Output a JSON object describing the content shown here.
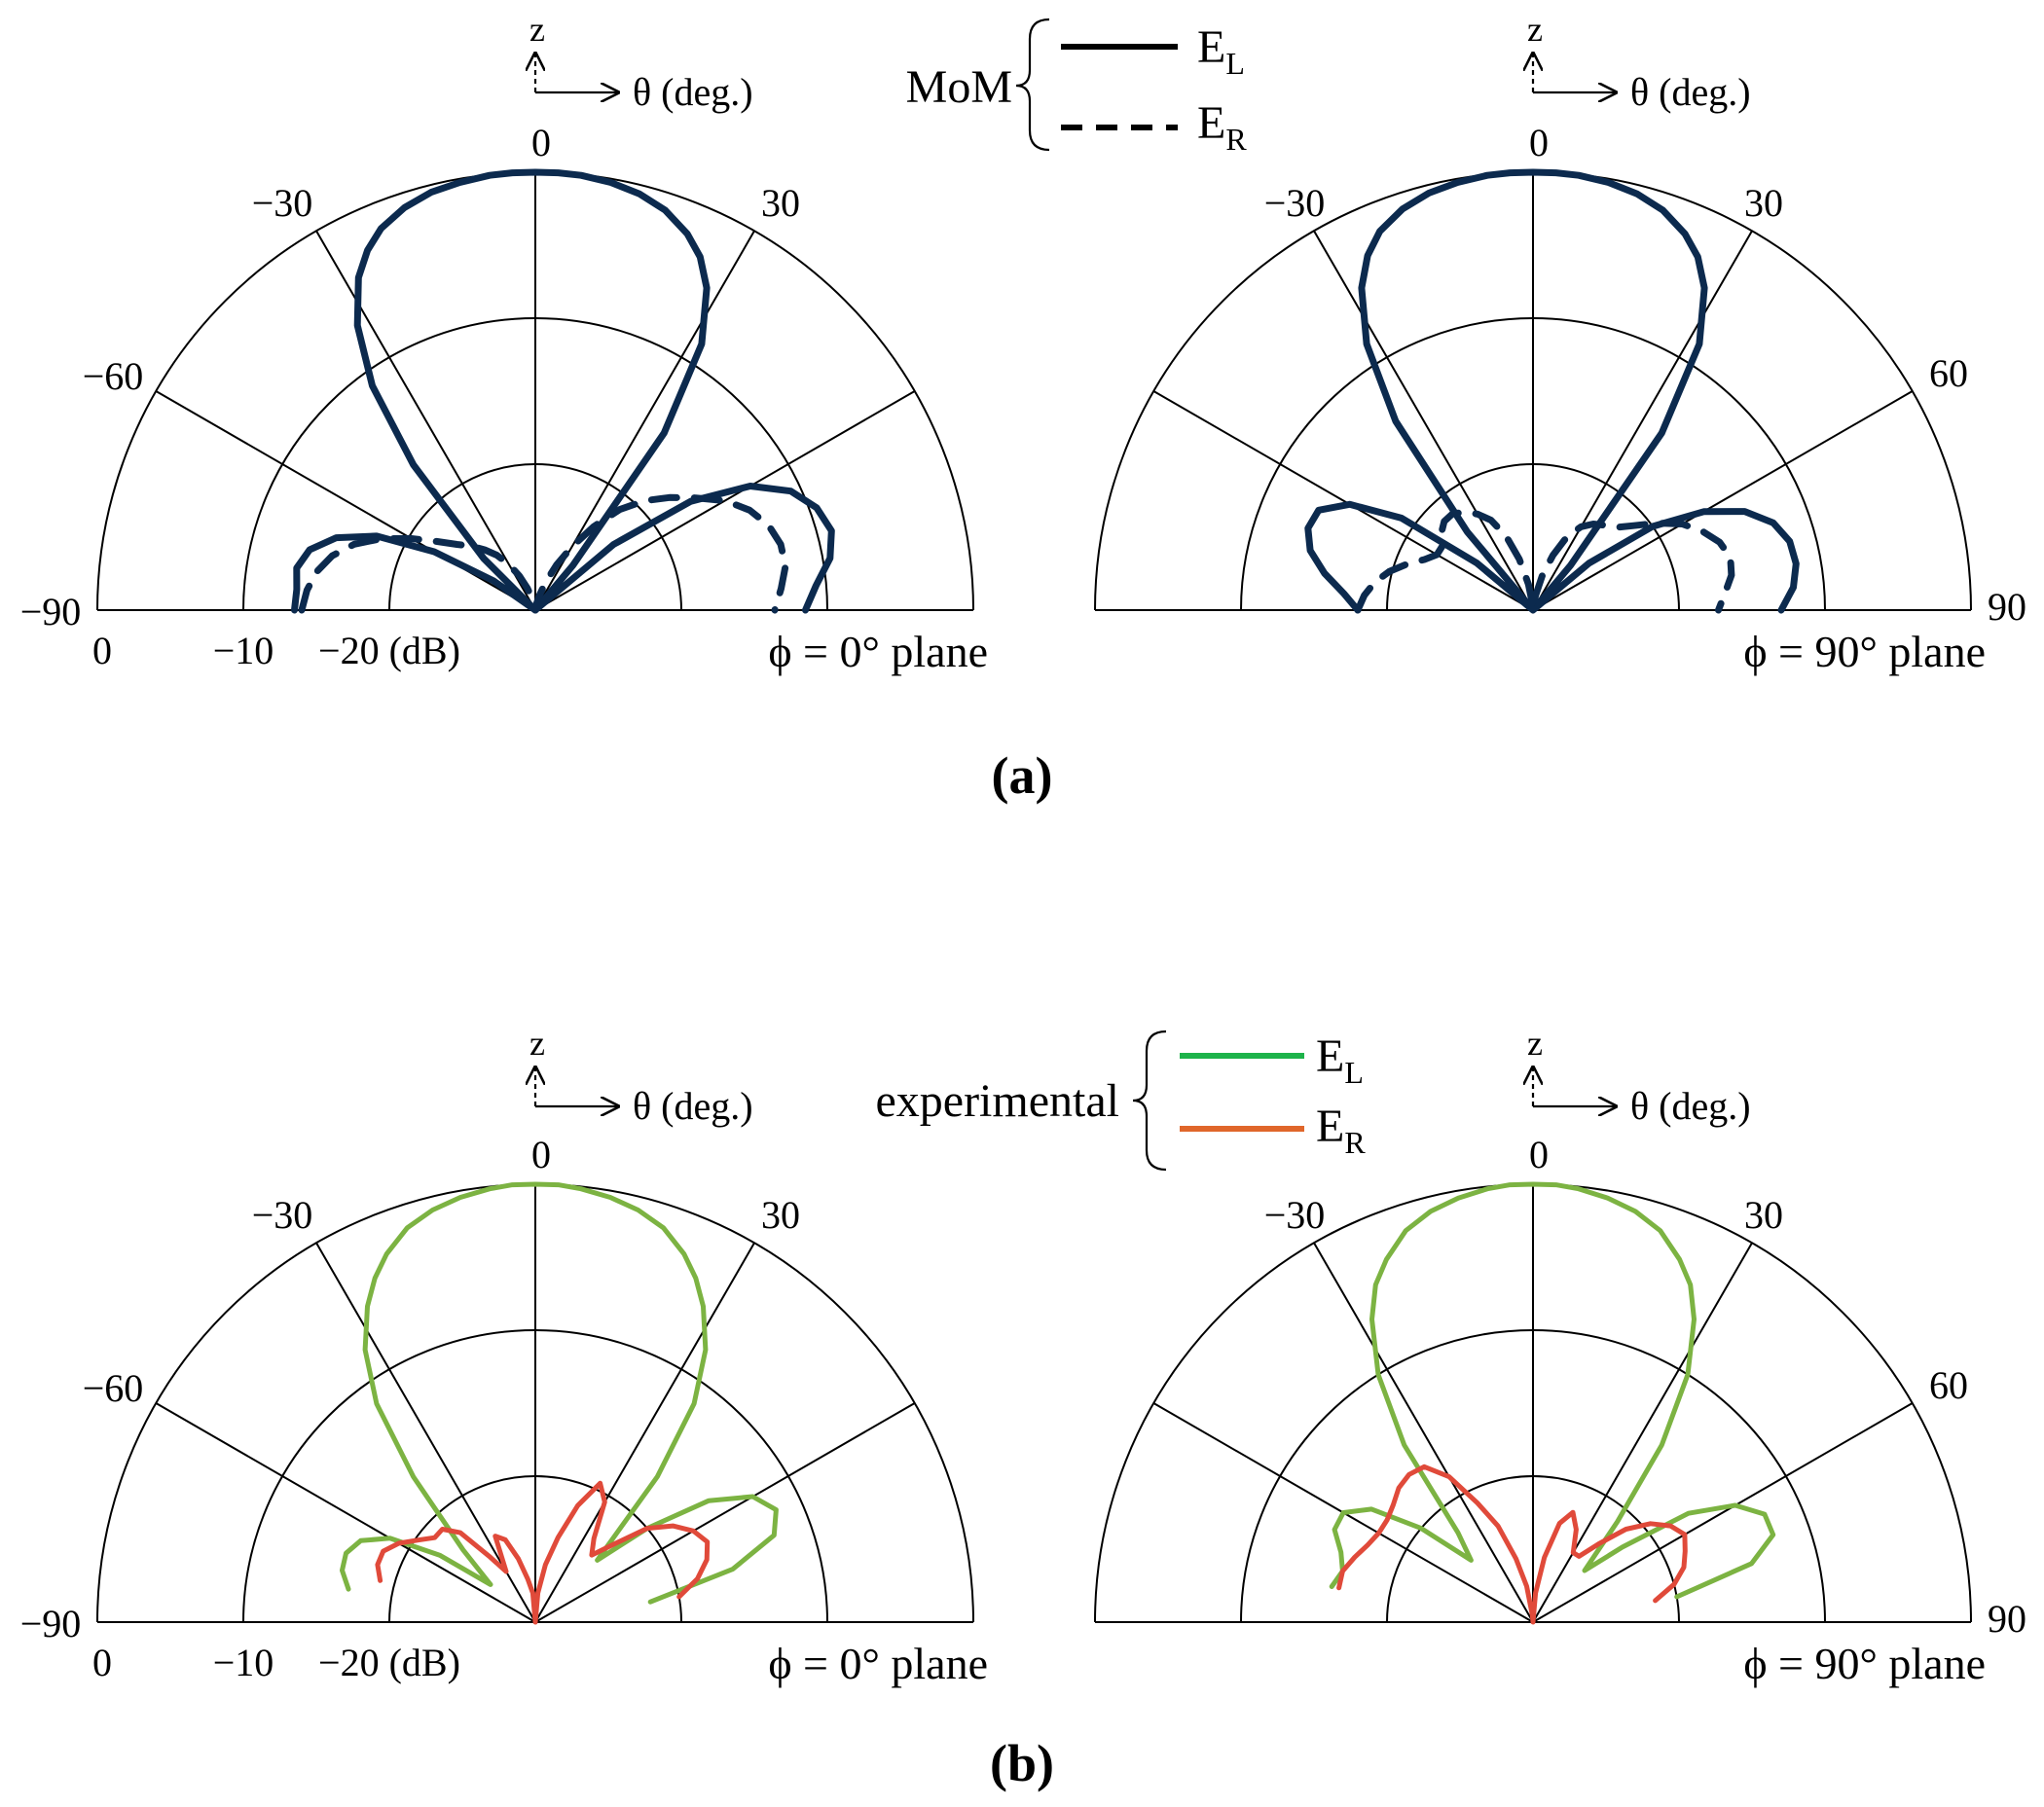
{
  "panels": [
    {
      "tag_open": "(",
      "tag_letter": "a",
      "tag_close": ")",
      "legend": {
        "group_label": "MoM",
        "entries": [
          {
            "symbol": "E",
            "sub": "L",
            "color": "#000000",
            "dash": false
          },
          {
            "symbol": "E",
            "sub": "R",
            "color": "#000000",
            "dash": true
          }
        ]
      }
    },
    {
      "tag_open": "(",
      "tag_letter": "b",
      "tag_close": ")",
      "legend": {
        "group_label": "experimental",
        "entries": [
          {
            "symbol": "E",
            "sub": "L",
            "color": "#1db34a",
            "dash": false
          },
          {
            "symbol": "E",
            "sub": "R",
            "color": "#e0662a",
            "dash": false
          }
        ]
      }
    }
  ],
  "axis_labels": {
    "z": "z",
    "theta": "θ (deg.)",
    "zero": "0",
    "db_unit": "(dB)",
    "radial_ticks": [
      "0",
      "−10",
      "−20"
    ]
  },
  "chart_data": [
    {
      "type": "polar",
      "panel": "a",
      "plane": "ϕ = 0° plane",
      "radial_range_db": [
        -30,
        0
      ],
      "radial_ticks_db": [
        0,
        -10,
        -20
      ],
      "theta_range": [
        -90,
        90
      ],
      "theta_ticks": [
        -90,
        -60,
        -30,
        0,
        30
      ],
      "theta_tick_labels": [
        "−90",
        "−60",
        "−30",
        "0",
        "30"
      ],
      "series": [
        {
          "name": "E_L",
          "color": "#0c2a4e",
          "dash": false,
          "theta": [
            -90,
            -85,
            -80,
            -75,
            -70,
            -65,
            -60,
            -55,
            -50,
            -45,
            -40,
            -36,
            -32,
            -28,
            -25,
            -22,
            -18,
            -14,
            -10,
            -6,
            -3,
            0,
            3,
            6,
            10,
            14,
            18,
            22,
            25,
            28,
            32,
            36,
            40,
            45,
            50,
            55,
            60,
            65,
            70,
            75,
            80,
            85,
            90
          ],
          "r_db": [
            -13.5,
            -13.6,
            -13.4,
            -14.0,
            -15.5,
            -18.0,
            -22.0,
            -26.5,
            -30.0,
            -25.0,
            -17.0,
            -11.0,
            -7.0,
            -4.2,
            -2.8,
            -1.8,
            -1.0,
            -0.5,
            -0.25,
            -0.05,
            0,
            0,
            0,
            -0.05,
            -0.25,
            -0.6,
            -1.2,
            -2.2,
            -3.3,
            -5.0,
            -8.5,
            -15.0,
            -26.0,
            -30.0,
            -23.0,
            -17.0,
            -13.0,
            -10.7,
            -9.5,
            -9.0,
            -9.5,
            -10.7,
            -11.5
          ]
        },
        {
          "name": "E_R",
          "color": "#0c2a4e",
          "dash": true,
          "theta": [
            -90,
            -85,
            -80,
            -75,
            -70,
            -65,
            -60,
            -55,
            -50,
            -45,
            -40,
            -35,
            -30,
            -25,
            -20,
            -15,
            -10,
            -5,
            0,
            5,
            10,
            15,
            20,
            25,
            30,
            35,
            40,
            45,
            50,
            55,
            60,
            65,
            70,
            75,
            80,
            85,
            90
          ],
          "r_db": [
            -14.0,
            -14.3,
            -14.8,
            -15.6,
            -16.8,
            -18.4,
            -20.2,
            -21.8,
            -23.0,
            -23.8,
            -24.6,
            -25.4,
            -26.4,
            -27.4,
            -28.4,
            -29.2,
            -29.7,
            -30.0,
            -30.0,
            -30.0,
            -29.6,
            -29.0,
            -28.0,
            -26.6,
            -25.0,
            -23.0,
            -21.0,
            -19.4,
            -18.0,
            -16.6,
            -15.0,
            -13.8,
            -13.0,
            -12.6,
            -12.6,
            -13.1,
            -13.6
          ]
        }
      ]
    },
    {
      "type": "polar",
      "panel": "a",
      "plane": "ϕ = 90° plane",
      "radial_range_db": [
        -30,
        0
      ],
      "theta_range": [
        -90,
        90
      ],
      "theta_ticks": [
        -30,
        0,
        30,
        60,
        90
      ],
      "theta_tick_labels": [
        "−30",
        "0",
        "30",
        "60",
        "90"
      ],
      "series": [
        {
          "name": "E_L",
          "color": "#0c2a4e",
          "dash": false,
          "theta": [
            -90,
            -85,
            -80,
            -75,
            -70,
            -65,
            -60,
            -55,
            -50,
            -45,
            -40,
            -36,
            -32,
            -28,
            -25,
            -22,
            -18,
            -14,
            -10,
            -6,
            -3,
            0,
            3,
            6,
            10,
            14,
            18,
            22,
            25,
            28,
            32,
            36,
            40,
            45,
            50,
            55,
            60,
            65,
            70,
            75,
            80,
            85,
            90
          ],
          "r_db": [
            -18.0,
            -17.0,
            -15.5,
            -14.2,
            -13.6,
            -13.8,
            -15.5,
            -19.0,
            -25.0,
            -30.0,
            -23.0,
            -14.0,
            -8.5,
            -5.0,
            -3.2,
            -2.0,
            -1.1,
            -0.55,
            -0.25,
            -0.05,
            0,
            0,
            0,
            -0.05,
            -0.25,
            -0.6,
            -1.2,
            -2.2,
            -3.3,
            -5.0,
            -8.5,
            -15.0,
            -26.0,
            -30.0,
            -25.0,
            -20.0,
            -16.5,
            -14.0,
            -12.5,
            -11.8,
            -11.7,
            -12.1,
            -13.0
          ]
        },
        {
          "name": "E_R",
          "color": "#0c2a4e",
          "dash": true,
          "theta": [
            -90,
            -85,
            -80,
            -75,
            -70,
            -65,
            -60,
            -55,
            -50,
            -45,
            -40,
            -35,
            -30,
            -25,
            -20,
            -15,
            -10,
            -5,
            0,
            5,
            10,
            15,
            20,
            25,
            30,
            35,
            40,
            45,
            50,
            55,
            60,
            65,
            70,
            75,
            80,
            85,
            90
          ],
          "r_db": [
            -18.0,
            -18.4,
            -19.0,
            -19.8,
            -20.8,
            -21.8,
            -22.4,
            -22.4,
            -21.8,
            -21.4,
            -21.4,
            -21.8,
            -22.4,
            -23.2,
            -24.6,
            -26.4,
            -28.2,
            -29.6,
            -30.0,
            -29.7,
            -29.0,
            -27.6,
            -26.0,
            -24.4,
            -23.4,
            -22.8,
            -22.4,
            -22.0,
            -21.0,
            -19.6,
            -18.2,
            -17.2,
            -16.4,
            -16.0,
            -16.2,
            -16.8,
            -17.3
          ]
        }
      ]
    },
    {
      "type": "polar",
      "panel": "b",
      "plane": "ϕ = 0° plane",
      "radial_range_db": [
        -30,
        0
      ],
      "radial_ticks_db": [
        0,
        -10,
        -20
      ],
      "theta_range": [
        -90,
        90
      ],
      "theta_ticks": [
        -90,
        -60,
        -30,
        0,
        30
      ],
      "theta_tick_labels": [
        "−90",
        "−60",
        "−30",
        "0",
        "30"
      ],
      "series": [
        {
          "name": "E_L",
          "color": "#7cb342",
          "dash": false,
          "theta": [
            -80,
            -75,
            -70,
            -65,
            -60,
            -55,
            -50,
            -45,
            -40,
            -36,
            -32,
            -28,
            -25,
            -22,
            -18,
            -14,
            -10,
            -6,
            -3,
            0,
            3,
            6,
            10,
            14,
            18,
            22,
            25,
            28,
            32,
            36,
            40,
            45,
            50,
            55,
            60,
            65,
            70,
            75,
            80
          ],
          "r_db": [
            -17.0,
            -16.3,
            -16.2,
            -16.8,
            -18.5,
            -22.0,
            -26.0,
            -23.0,
            -17.0,
            -11.5,
            -8.0,
            -5.5,
            -4.0,
            -2.8,
            -1.6,
            -0.9,
            -0.45,
            -0.15,
            0,
            0,
            0,
            -0.15,
            -0.45,
            -0.9,
            -1.6,
            -2.8,
            -4.0,
            -5.5,
            -8.0,
            -11.5,
            -17.0,
            -24.0,
            -20.0,
            -15.5,
            -12.8,
            -11.8,
            -12.6,
            -16.0,
            -22.0
          ]
        },
        {
          "name": "E_R",
          "color": "#e04a3a",
          "dash": false,
          "theta": [
            -75,
            -70,
            -65,
            -60,
            -55,
            -50,
            -45,
            -40,
            -35,
            -30,
            -25,
            -20,
            -15,
            -10,
            -5,
            0,
            5,
            10,
            15,
            20,
            25,
            30,
            35,
            40,
            45,
            50,
            55,
            60,
            65,
            70,
            75,
            80
          ],
          "r_db": [
            -19.0,
            -18.5,
            -18.5,
            -19.2,
            -20.2,
            -21.0,
            -21.0,
            -22.0,
            -24.5,
            -26.0,
            -23.5,
            -24.0,
            -25.5,
            -27.0,
            -28.0,
            -30.0,
            -28.0,
            -26.0,
            -24.0,
            -21.5,
            -19.5,
            -20.5,
            -23.0,
            -24.0,
            -22.5,
            -20.0,
            -18.5,
            -17.5,
            -17.0,
            -17.5,
            -18.5,
            -20.0
          ]
        }
      ]
    },
    {
      "type": "polar",
      "panel": "b",
      "plane": "ϕ = 90° plane",
      "radial_range_db": [
        -30,
        0
      ],
      "theta_range": [
        -90,
        90
      ],
      "theta_ticks": [
        -30,
        0,
        30,
        60,
        90
      ],
      "theta_tick_labels": [
        "−30",
        "0",
        "30",
        "60",
        "90"
      ],
      "series": [
        {
          "name": "E_L",
          "color": "#7cb342",
          "dash": false,
          "theta": [
            -80,
            -75,
            -70,
            -65,
            -60,
            -55,
            -50,
            -45,
            -40,
            -36,
            -32,
            -28,
            -25,
            -22,
            -18,
            -14,
            -10,
            -6,
            -3,
            0,
            3,
            6,
            10,
            14,
            18,
            22,
            25,
            28,
            32,
            36,
            40,
            45,
            50,
            55,
            60,
            65,
            70,
            75,
            80
          ],
          "r_db": [
            -16.0,
            -16.5,
            -16.0,
            -15.0,
            -15.0,
            -16.5,
            -20.0,
            -24.0,
            -22.0,
            -15.0,
            -10.0,
            -6.5,
            -4.5,
            -3.2,
            -1.8,
            -1.0,
            -0.5,
            -0.15,
            0,
            0,
            0,
            -0.15,
            -0.5,
            -1.0,
            -1.8,
            -3.2,
            -4.5,
            -6.5,
            -10.0,
            -15.0,
            -21.0,
            -25.0,
            -22.0,
            -17.0,
            -14.0,
            -12.5,
            -12.5,
            -14.5,
            -20.0
          ]
        },
        {
          "name": "E_R",
          "color": "#e04a3a",
          "dash": false,
          "theta": [
            -80,
            -75,
            -70,
            -65,
            -60,
            -55,
            -50,
            -45,
            -40,
            -35,
            -30,
            -25,
            -20,
            -15,
            -10,
            -5,
            0,
            5,
            10,
            15,
            20,
            25,
            30,
            35,
            40,
            45,
            50,
            55,
            60,
            65,
            70,
            75,
            80
          ],
          "r_db": [
            -16.5,
            -16.5,
            -17.0,
            -17.5,
            -17.8,
            -17.8,
            -17.5,
            -17.0,
            -16.8,
            -17.0,
            -18.5,
            -21.0,
            -23.0,
            -25.5,
            -27.5,
            -29.5,
            -30.0,
            -28.0,
            -25.5,
            -23.0,
            -22.0,
            -23.0,
            -24.5,
            -24.5,
            -23.0,
            -21.0,
            -19.5,
            -18.5,
            -18.0,
            -18.5,
            -19.0,
            -20.0,
            -21.5
          ]
        }
      ]
    }
  ]
}
